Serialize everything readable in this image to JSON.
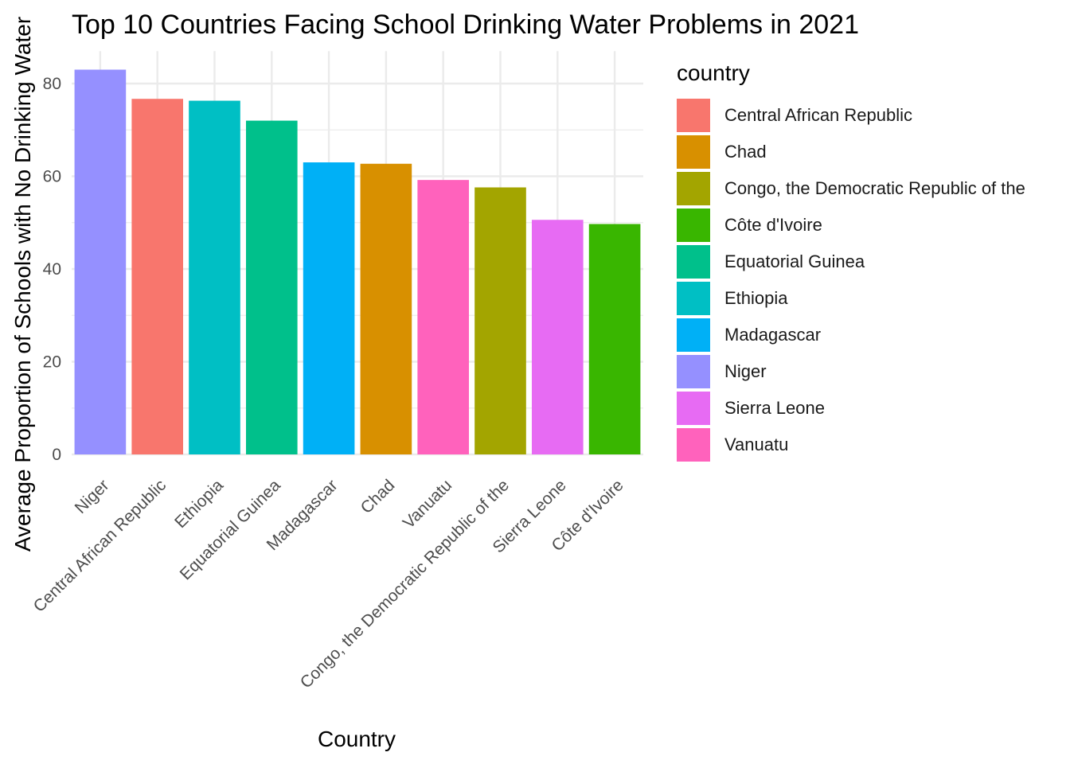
{
  "chart_data": {
    "type": "bar",
    "title": "Top 10 Countries Facing School Drinking Water Problems in 2021",
    "xlabel": "Country",
    "ylabel": "Average Proportion of Schools with No Drinking Water",
    "categories": [
      "Niger",
      "Central African Republic",
      "Ethiopia",
      "Equatorial Guinea",
      "Madagascar",
      "Chad",
      "Vanuatu",
      "Congo, the Democratic Republic of the",
      "Sierra Leone",
      "Côte d'Ivoire"
    ],
    "values": [
      83.0,
      76.7,
      76.3,
      72.0,
      63.0,
      62.7,
      59.2,
      57.6,
      50.6,
      49.7
    ],
    "colors": [
      "#9590FF",
      "#F8766D",
      "#00BFC4",
      "#00C08B",
      "#00B0F6",
      "#D89000",
      "#FF62BC",
      "#A3A500",
      "#E76BF3",
      "#39B600"
    ],
    "yticks": [
      0,
      20,
      40,
      60,
      80
    ],
    "ylim": [
      0,
      87
    ],
    "grid": true,
    "legend": {
      "title": "country",
      "position": "right",
      "items": [
        {
          "label": "Central African Republic",
          "color": "#F8766D"
        },
        {
          "label": "Chad",
          "color": "#D89000"
        },
        {
          "label": "Congo, the Democratic Republic of the",
          "color": "#A3A500"
        },
        {
          "label": "Côte d'Ivoire",
          "color": "#39B600"
        },
        {
          "label": "Equatorial Guinea",
          "color": "#00C08B"
        },
        {
          "label": "Ethiopia",
          "color": "#00BFC4"
        },
        {
          "label": "Madagascar",
          "color": "#00B0F6"
        },
        {
          "label": "Niger",
          "color": "#9590FF"
        },
        {
          "label": "Sierra Leone",
          "color": "#E76BF3"
        },
        {
          "label": "Vanuatu",
          "color": "#FF62BC"
        }
      ]
    }
  }
}
